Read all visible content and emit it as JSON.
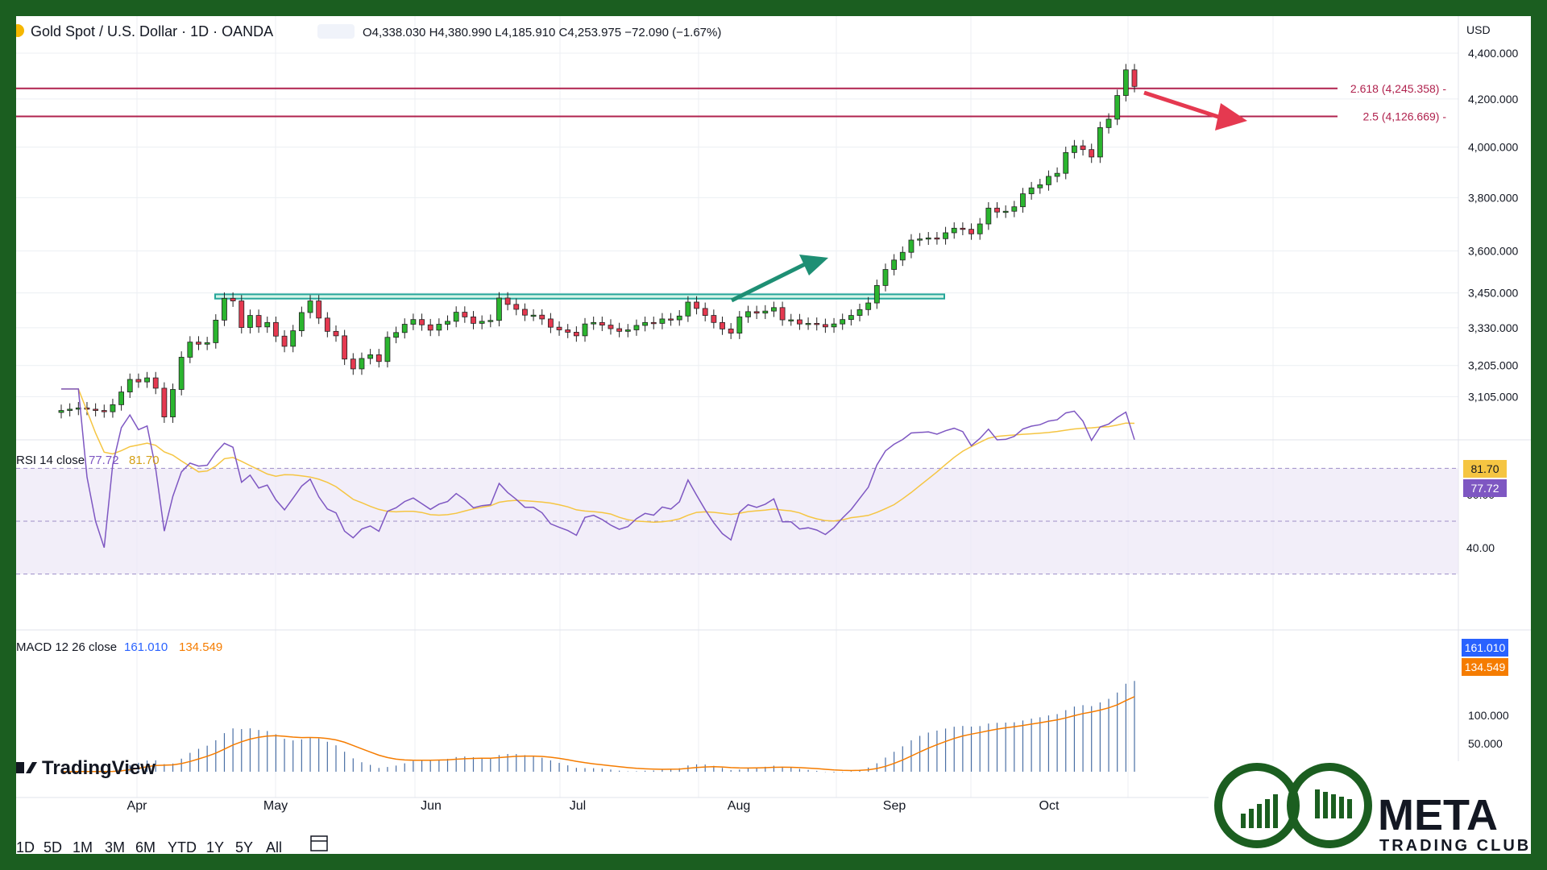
{
  "header": {
    "symbol": "Gold Spot / U.S. Dollar · 1D · OANDA",
    "open": "O4,338.030",
    "high": "H4,380.990",
    "low": "L4,185.910",
    "close": "C4,253.975",
    "change": "−72.090 (−1.67%)",
    "currency": "USD"
  },
  "colors": {
    "up": "#26a69a",
    "up_fill": "#2bb52f",
    "down": "#e53950",
    "level_line": "#b0224e",
    "rsi": "#7e57c2",
    "rsi_ma": "#f5c542",
    "macd": "#2962ff",
    "signal": "#f57c00",
    "arrow_up": "#1e8f74",
    "arrow_down": "#e53950",
    "brand": "#1b5e20"
  },
  "chart_data": [
    {
      "type": "candlestick",
      "title": "Gold Spot / U.S. Dollar · 1D · OANDA",
      "y_scale": "log",
      "y_ticks": [
        "4,400.000",
        "4,200.000",
        "4,000.000",
        "3,800.000",
        "3,600.000",
        "3,450.000",
        "3,330.000",
        "3,205.000",
        "3,105.000"
      ],
      "y_tick_values": [
        4400,
        4200,
        4000,
        3800,
        3600,
        3450,
        3330,
        3205,
        3105
      ],
      "x_labels": [
        "Apr",
        "May",
        "Jun",
        "Jul",
        "Aug",
        "Sep",
        "Oct"
      ],
      "fib_levels": [
        {
          "label": "2.618 (4,245.358)",
          "value": 4245.358
        },
        {
          "label": "2.5 (4,126.669)",
          "value": 4126.669
        }
      ],
      "resistance_zone": {
        "low": 3430,
        "high": 3445
      },
      "closes": [
        3062,
        3066,
        3070,
        3066,
        3062,
        3058,
        3080,
        3120,
        3160,
        3152,
        3165,
        3132,
        3042,
        3128,
        3232,
        3282,
        3275,
        3280,
        3356,
        3431,
        3422,
        3331,
        3372,
        3333,
        3348,
        3302,
        3268,
        3320,
        3382,
        3422,
        3363,
        3318,
        3303,
        3226,
        3194,
        3228,
        3240,
        3218,
        3298,
        3314,
        3342,
        3358,
        3340,
        3322,
        3342,
        3352,
        3383,
        3367,
        3345,
        3352,
        3355,
        3432,
        3410,
        3393,
        3373,
        3373,
        3360,
        3332,
        3323,
        3315,
        3303,
        3343,
        3348,
        3339,
        3327,
        3318,
        3323,
        3338,
        3348,
        3345,
        3360,
        3357,
        3370,
        3418,
        3396,
        3372,
        3348,
        3326,
        3312,
        3367,
        3385,
        3380,
        3387,
        3399,
        3357,
        3357,
        3343,
        3345,
        3341,
        3333,
        3343,
        3358,
        3372,
        3392,
        3415,
        3476,
        3533,
        3567,
        3595,
        3640,
        3644,
        3648,
        3645,
        3667,
        3684,
        3680,
        3663,
        3700,
        3760,
        3745,
        3748,
        3765,
        3815,
        3838,
        3850,
        3883,
        3895,
        3978,
        4005,
        3990,
        3960,
        4080,
        4115,
        4215,
        4326,
        4254
      ],
      "rsi": {
        "label": "RSI 14 close",
        "value": "77.72",
        "ma": "81.70",
        "bands": [
          70,
          50,
          30
        ],
        "y_ticks": [
          "60.00",
          "40.00"
        ]
      },
      "macd": {
        "label": "MACD 12 26 close",
        "value": "161.010",
        "signal": "134.549",
        "y_ticks": [
          "100.000",
          "50.000"
        ]
      }
    }
  ],
  "toolbar": {
    "items": [
      "1D",
      "5D",
      "1M",
      "3M",
      "6M",
      "YTD",
      "1Y",
      "5Y",
      "All"
    ]
  },
  "branding": {
    "tv": "TradingView",
    "brand_top": "META",
    "brand_bottom": "TRADING CLUB"
  }
}
